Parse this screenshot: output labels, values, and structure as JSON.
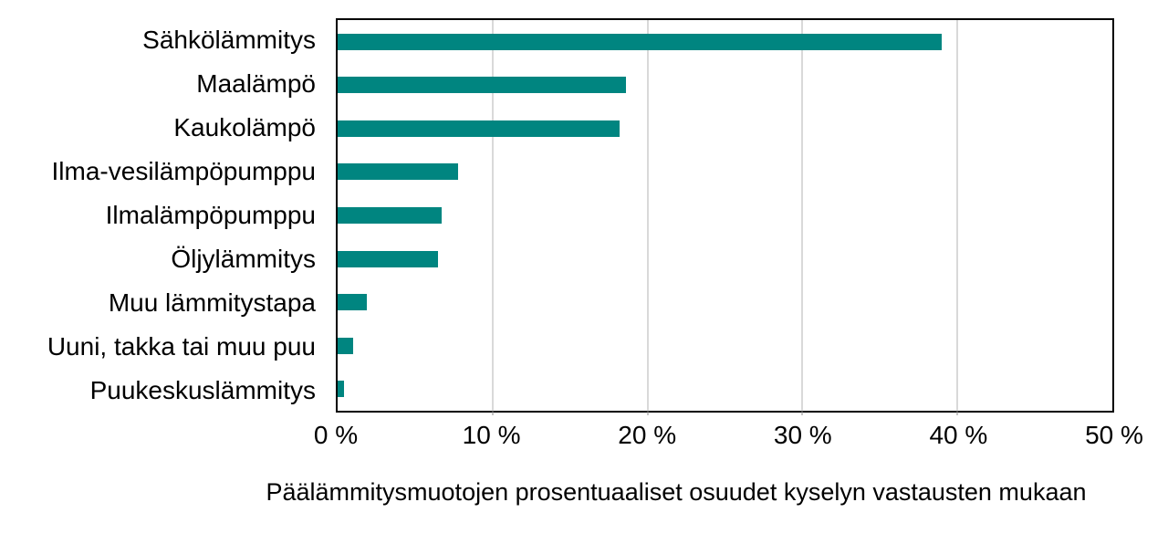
{
  "page": {
    "background": "#ffffff",
    "text_color": "#000000"
  },
  "chart_data": {
    "type": "bar",
    "orientation": "horizontal",
    "title": "",
    "caption": "Päälämmitysmuotojen prosentuaaliset osuudet kyselyn vastausten mukaan",
    "categories": [
      "Sähkölämmitys",
      "Maalämpö",
      "Kaukolämpö",
      "Ilma-vesilämpöpumppu",
      "Ilmalämpöpumppu",
      "Öljylämmitys",
      "Muu lämmitystapa",
      "Uuni, takka tai muu puu",
      "Puukeskuslämmitys"
    ],
    "values": [
      39.0,
      18.6,
      18.2,
      7.8,
      6.7,
      6.5,
      1.9,
      1.0,
      0.4
    ],
    "unit": "%",
    "xlabel": "",
    "ylabel": "",
    "xlim": [
      0,
      50
    ],
    "xticks": [
      0,
      10,
      20,
      30,
      40,
      50
    ],
    "xtick_labels": [
      "0 %",
      "10 %",
      "20 %",
      "30 %",
      "40 %",
      "50 %"
    ],
    "gridlines": [
      10,
      20,
      30,
      40
    ],
    "grid": "vertical-only",
    "legend_position": "none",
    "bar_color": "#008580",
    "grid_color": "#d9d9d9",
    "border_color": "#000000",
    "text_color": "#000000"
  }
}
